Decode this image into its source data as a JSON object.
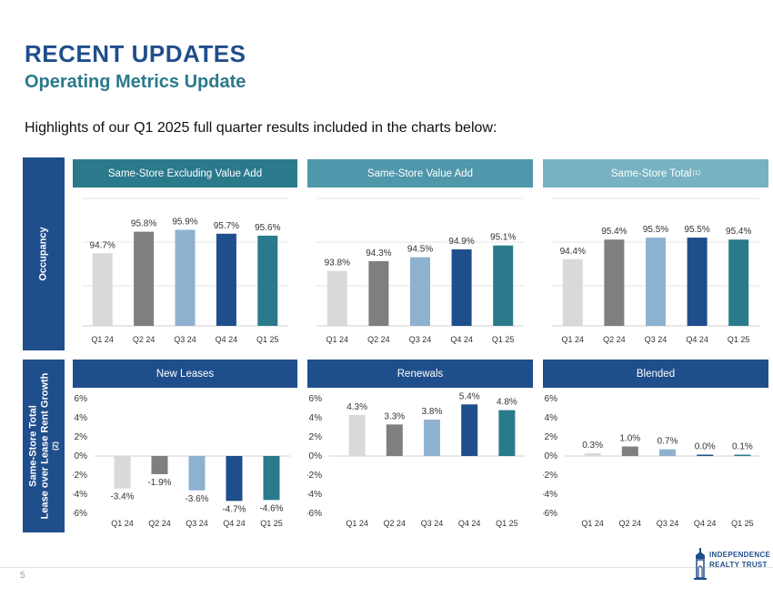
{
  "header": {
    "title": "RECENT UPDATES",
    "subtitle": "Operating Metrics Update",
    "highlights": "Highlights of our Q1 2025 full quarter results included in the charts below:"
  },
  "row_labels": {
    "occupancy": "Occupancy",
    "growth_line1": "Same-Store Total",
    "growth_line2": "Lease over Lease Rent Growth",
    "growth_note": "(2)"
  },
  "colors": {
    "q1_24": "#d9d9d9",
    "q2_24": "#7f7f7f",
    "q3_24": "#8fb1d0",
    "q4_24": "#1f4e8c",
    "q1_25": "#2a7a8c",
    "ribbon_excl": "#2a7a8c",
    "ribbon_va": "#4f97aa",
    "ribbon_total": "#76b2c2",
    "ribbon_lease": "#1f4e8c"
  },
  "chart_data": [
    {
      "type": "bar",
      "title": "Same-Store Excluding Value Add",
      "categories": [
        "Q1 24",
        "Q2 24",
        "Q3 24",
        "Q4 24",
        "Q1 25"
      ],
      "values": [
        94.7,
        95.8,
        95.9,
        95.7,
        95.6
      ],
      "labels": [
        "94.7%",
        "95.8%",
        "95.9%",
        "95.7%",
        "95.6%"
      ]
    },
    {
      "type": "bar",
      "title": "Same-Store Value Add",
      "categories": [
        "Q1 24",
        "Q2 24",
        "Q3 24",
        "Q4 24",
        "Q1 25"
      ],
      "values": [
        93.8,
        94.3,
        94.5,
        94.9,
        95.1
      ],
      "labels": [
        "93.8%",
        "94.3%",
        "94.5%",
        "94.9%",
        "95.1%"
      ]
    },
    {
      "type": "bar",
      "title": "Same-Store Total",
      "title_note": "(1)",
      "categories": [
        "Q1 24",
        "Q2 24",
        "Q3 24",
        "Q4 24",
        "Q1 25"
      ],
      "values": [
        94.4,
        95.4,
        95.5,
        95.5,
        95.4
      ],
      "labels": [
        "94.4%",
        "95.4%",
        "95.5%",
        "95.5%",
        "95.4%"
      ]
    },
    {
      "type": "bar",
      "title": "New Leases",
      "categories": [
        "Q1 24",
        "Q2 24",
        "Q3 24",
        "Q4 24",
        "Q1 25"
      ],
      "values": [
        -3.4,
        -1.9,
        -3.6,
        -4.7,
        -4.6
      ],
      "labels": [
        "-3.4%",
        "-1.9%",
        "-3.6%",
        "-4.7%",
        "-4.6%"
      ],
      "ylim": [
        -6,
        6
      ],
      "yticks": [
        "6%",
        "4%",
        "2%",
        "0%",
        "-2%",
        "-4%",
        "-6%"
      ]
    },
    {
      "type": "bar",
      "title": "Renewals",
      "categories": [
        "Q1 24",
        "Q2 24",
        "Q3 24",
        "Q4 24",
        "Q1 25"
      ],
      "values": [
        4.3,
        3.3,
        3.8,
        5.4,
        4.8
      ],
      "labels": [
        "4.3%",
        "3.3%",
        "3.8%",
        "5.4%",
        "4.8%"
      ],
      "ylim": [
        -6,
        6
      ],
      "yticks": [
        "6%",
        "4%",
        "2%",
        "0%",
        "-2%",
        "-4%",
        "-6%"
      ]
    },
    {
      "type": "bar",
      "title": "Blended",
      "categories": [
        "Q1 24",
        "Q2 24",
        "Q3 24",
        "Q4 24",
        "Q1 25"
      ],
      "values": [
        0.3,
        1.0,
        0.7,
        0.0,
        0.1
      ],
      "labels": [
        "0.3%",
        "1.0%",
        "0.7%",
        "0.0%",
        "0.1%"
      ],
      "ylim": [
        -6,
        6
      ],
      "yticks": [
        "6%",
        "4%",
        "2%",
        "0%",
        "-2%",
        "-4%",
        "-6%"
      ]
    }
  ],
  "footer": {
    "page_number": "5",
    "logo_line1": "INDEPENDENCE",
    "logo_line2": "REALTY TRUST"
  }
}
